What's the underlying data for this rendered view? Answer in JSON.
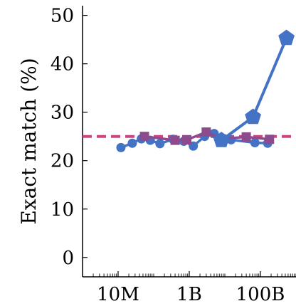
{
  "chart_data": {
    "type": "line",
    "title": "",
    "xlabel": "",
    "ylabel": "Exact match (%)",
    "x_scale": "log",
    "xlim": [
      1000000,
      1000000000000
    ],
    "ylim": [
      -4,
      52
    ],
    "yticks": [
      0,
      10,
      20,
      30,
      40,
      50
    ],
    "ytick_labels": [
      "0",
      "10",
      "20",
      "30",
      "40",
      "50"
    ],
    "xticks": [
      10000000,
      1000000000,
      100000000000
    ],
    "xtick_labels": [
      "10M",
      "1B",
      "100B"
    ],
    "baseline": {
      "y": 25,
      "color": "#c9467f",
      "style": "dashed"
    },
    "series": [
      {
        "marker": "circle",
        "color": "#4472c4",
        "x": [
          12000000,
          25000000,
          45000000,
          80000000,
          150000000,
          350000000,
          700000000,
          1300000000,
          2700000000,
          5000000000,
          15000000000,
          70000000000,
          160000000000
        ],
        "y": [
          22.7,
          23.6,
          24.5,
          24.2,
          23.5,
          24.4,
          24.0,
          23.0,
          25.0,
          25.6,
          24.3,
          23.7,
          23.6
        ]
      },
      {
        "marker": "square",
        "color": "#8d4b8e",
        "x": [
          55000000,
          400000000,
          850000000,
          3000000000,
          8000000000,
          40000000000,
          180000000000
        ],
        "y": [
          25.0,
          24.2,
          24.3,
          25.9,
          24.5,
          24.9,
          24.4
        ]
      },
      {
        "marker": "pentagon",
        "color": "#4472c4",
        "x": [
          8000000000,
          62000000000,
          540000000000
        ],
        "y": [
          24.2,
          29.0,
          45.3
        ]
      }
    ]
  }
}
